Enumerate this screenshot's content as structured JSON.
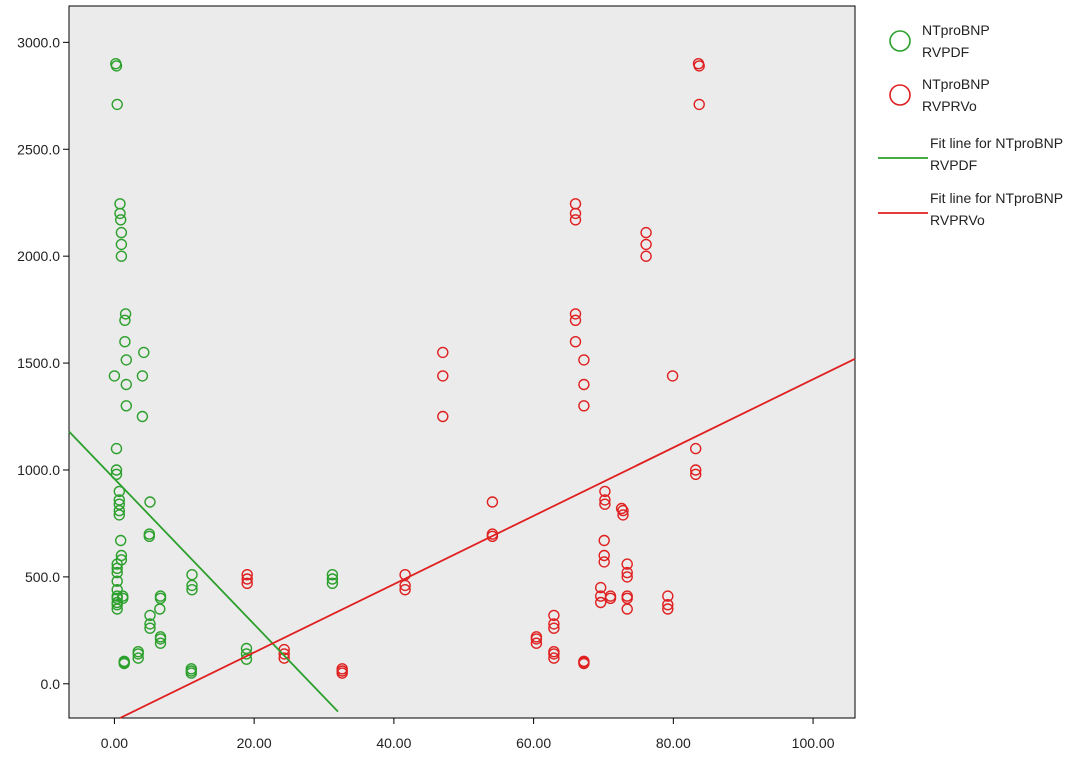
{
  "chart_data": {
    "type": "scatter",
    "title": "",
    "xlabel": "",
    "ylabel": "",
    "xlim": [
      -6.5,
      106
    ],
    "ylim": [
      -160,
      3170
    ],
    "x_ticks": [
      0,
      20,
      40,
      60,
      80,
      100
    ],
    "x_tick_labels": [
      "0.00",
      "20.00",
      "40.00",
      "60.00",
      "80.00",
      "100.00"
    ],
    "y_ticks": [
      0,
      500,
      1000,
      1500,
      2000,
      2500,
      3000
    ],
    "y_tick_labels": [
      "0.0",
      "500.0",
      "1000.0",
      "1500.0",
      "2000.0",
      "2500.0",
      "3000.0"
    ],
    "grid": false,
    "legend_position": "right",
    "colors": {
      "green": "#2ca02c",
      "red": "#e02020",
      "plot_bg": "#ebebeb",
      "axis": "#000000"
    },
    "series": [
      {
        "name": "NTproBNP RVPDF",
        "legend_lines": [
          "NTproBNP",
          "RVPDF"
        ],
        "color": "#2ca02c",
        "marker": "circle-open",
        "points": [
          [
            0.2,
            2900
          ],
          [
            0.3,
            2890
          ],
          [
            0.4,
            2710
          ],
          [
            0.8,
            2245
          ],
          [
            0.8,
            2200
          ],
          [
            0.9,
            2170
          ],
          [
            1.0,
            2110
          ],
          [
            1.0,
            2055
          ],
          [
            1.0,
            2000
          ],
          [
            1.6,
            1730
          ],
          [
            1.5,
            1700
          ],
          [
            1.5,
            1600
          ],
          [
            1.7,
            1515
          ],
          [
            1.7,
            1400
          ],
          [
            1.7,
            1300
          ],
          [
            0.0,
            1440
          ],
          [
            4.2,
            1550
          ],
          [
            4.0,
            1440
          ],
          [
            4.0,
            1250
          ],
          [
            0.3,
            1100
          ],
          [
            0.3,
            1000
          ],
          [
            0.3,
            980
          ],
          [
            0.7,
            900
          ],
          [
            0.7,
            860
          ],
          [
            0.7,
            840
          ],
          [
            0.7,
            810
          ],
          [
            0.7,
            790
          ],
          [
            5.1,
            850
          ],
          [
            5.0,
            700
          ],
          [
            5.0,
            690
          ],
          [
            0.9,
            670
          ],
          [
            1.0,
            600
          ],
          [
            1.0,
            580
          ],
          [
            0.4,
            560
          ],
          [
            0.4,
            540
          ],
          [
            0.4,
            520
          ],
          [
            0.4,
            480
          ],
          [
            0.4,
            440
          ],
          [
            1.2,
            410
          ],
          [
            1.2,
            400
          ],
          [
            0.4,
            410
          ],
          [
            0.4,
            400
          ],
          [
            0.4,
            380
          ],
          [
            0.4,
            370
          ],
          [
            0.4,
            350
          ],
          [
            6.6,
            410
          ],
          [
            6.6,
            400
          ],
          [
            6.5,
            350
          ],
          [
            5.1,
            320
          ],
          [
            5.1,
            280
          ],
          [
            5.1,
            260
          ],
          [
            6.6,
            220
          ],
          [
            6.6,
            210
          ],
          [
            6.6,
            190
          ],
          [
            11.1,
            510
          ],
          [
            11.1,
            460
          ],
          [
            11.1,
            440
          ],
          [
            3.4,
            150
          ],
          [
            3.4,
            140
          ],
          [
            3.4,
            120
          ],
          [
            1.4,
            105
          ],
          [
            1.4,
            100
          ],
          [
            1.4,
            95
          ],
          [
            11.0,
            70
          ],
          [
            11.0,
            60
          ],
          [
            11.0,
            50
          ],
          [
            18.9,
            165
          ],
          [
            18.9,
            140
          ],
          [
            18.9,
            115
          ],
          [
            31.2,
            510
          ],
          [
            31.2,
            490
          ],
          [
            31.2,
            470
          ]
        ],
        "fit_line": {
          "label": "Fit line for NTproBNP RVPDF",
          "legend_lines": [
            "Fit line for NTproBNP",
            "RVPDF"
          ],
          "x": [
            -6.5,
            32
          ],
          "y": [
            1180,
            -130
          ]
        }
      },
      {
        "name": "NTproBNP RVPRVo",
        "legend_lines": [
          "NTproBNP",
          "RVPRVo"
        ],
        "color": "#e02020",
        "marker": "circle-open",
        "points": [
          [
            19.0,
            510
          ],
          [
            19.0,
            490
          ],
          [
            19.0,
            470
          ],
          [
            24.3,
            160
          ],
          [
            24.3,
            140
          ],
          [
            24.3,
            120
          ],
          [
            32.6,
            70
          ],
          [
            32.6,
            60
          ],
          [
            32.6,
            50
          ],
          [
            41.6,
            510
          ],
          [
            41.6,
            460
          ],
          [
            41.6,
            440
          ],
          [
            47.0,
            1550
          ],
          [
            47.0,
            1440
          ],
          [
            47.0,
            1250
          ],
          [
            54.1,
            850
          ],
          [
            54.1,
            700
          ],
          [
            54.1,
            690
          ],
          [
            60.4,
            220
          ],
          [
            60.4,
            210
          ],
          [
            60.4,
            190
          ],
          [
            62.9,
            320
          ],
          [
            62.9,
            280
          ],
          [
            62.9,
            260
          ],
          [
            62.9,
            150
          ],
          [
            62.9,
            140
          ],
          [
            62.9,
            120
          ],
          [
            66.0,
            2245
          ],
          [
            66.0,
            2200
          ],
          [
            66.0,
            2170
          ],
          [
            66.0,
            1730
          ],
          [
            66.0,
            1700
          ],
          [
            66.0,
            1600
          ],
          [
            67.2,
            1515
          ],
          [
            67.2,
            1400
          ],
          [
            67.2,
            1300
          ],
          [
            67.2,
            105
          ],
          [
            67.2,
            100
          ],
          [
            67.2,
            95
          ],
          [
            69.6,
            450
          ],
          [
            69.6,
            410
          ],
          [
            69.6,
            380
          ],
          [
            70.2,
            900
          ],
          [
            70.2,
            860
          ],
          [
            70.2,
            840
          ],
          [
            70.1,
            670
          ],
          [
            70.1,
            600
          ],
          [
            70.1,
            570
          ],
          [
            71.0,
            410
          ],
          [
            71.0,
            400
          ],
          [
            72.6,
            820
          ],
          [
            72.8,
            810
          ],
          [
            72.8,
            790
          ],
          [
            73.4,
            560
          ],
          [
            73.4,
            520
          ],
          [
            73.4,
            500
          ],
          [
            73.4,
            410
          ],
          [
            73.4,
            400
          ],
          [
            73.4,
            350
          ],
          [
            76.1,
            2110
          ],
          [
            76.1,
            2055
          ],
          [
            76.1,
            2000
          ],
          [
            79.2,
            410
          ],
          [
            79.2,
            370
          ],
          [
            79.2,
            350
          ],
          [
            79.9,
            1440
          ],
          [
            83.2,
            1100
          ],
          [
            83.2,
            1000
          ],
          [
            83.2,
            980
          ],
          [
            83.6,
            2900
          ],
          [
            83.7,
            2890
          ],
          [
            83.7,
            2710
          ]
        ],
        "fit_line": {
          "label": "Fit line for NTproBNP RVPRVo",
          "legend_lines": [
            "Fit line for NTproBNP",
            "RVPRVo"
          ],
          "x": [
            0.8,
            106
          ],
          "y": [
            -160,
            1520
          ]
        }
      }
    ]
  }
}
